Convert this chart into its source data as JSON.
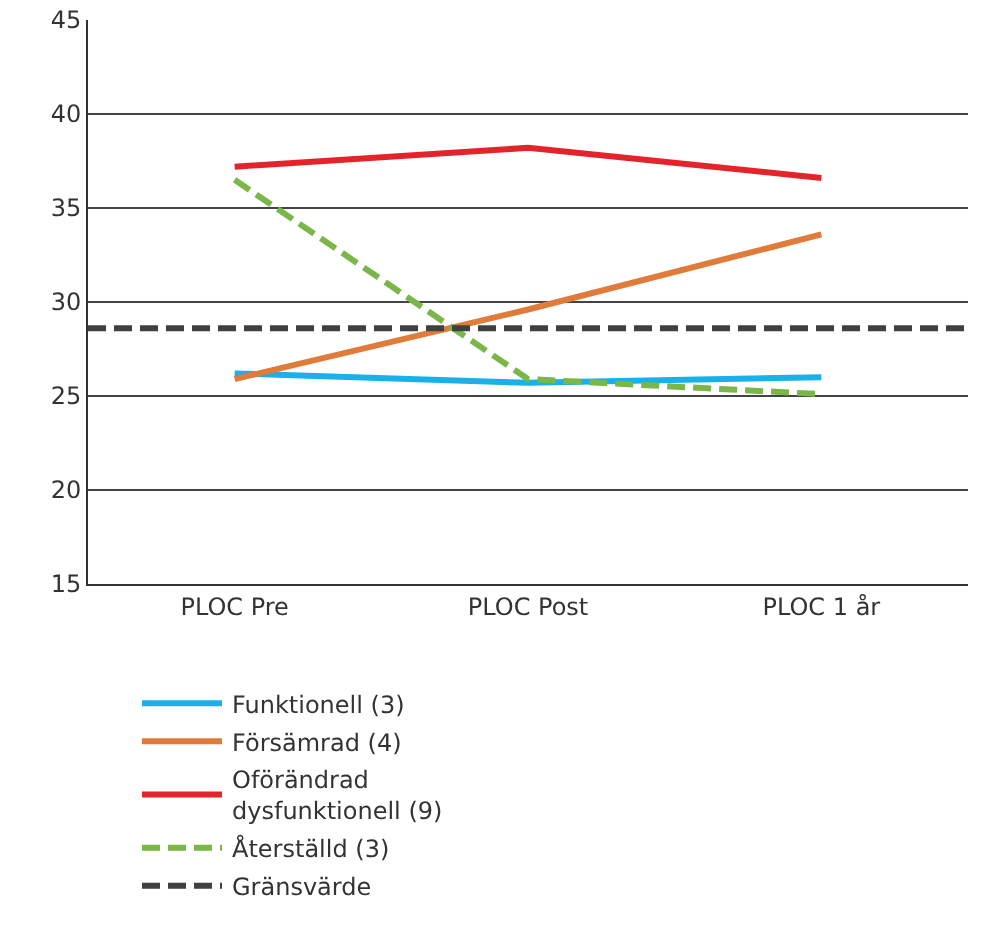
{
  "chart_data": {
    "type": "line",
    "categories": [
      "PLOC Pre",
      "PLOC Post",
      "PLOC 1 år"
    ],
    "series": [
      {
        "name": "Funktionell (3)",
        "color": "#1ab0e8",
        "values": [
          26.2,
          25.7,
          26.0
        ]
      },
      {
        "name": "Försämrad (4)",
        "color": "#e07b39",
        "values": [
          25.9,
          29.6,
          33.6
        ]
      },
      {
        "name": "Oförändrad dysfunktionell (9)",
        "color": "#e3242b",
        "values": [
          37.2,
          38.2,
          36.6
        ]
      },
      {
        "name": "Återställd (3)",
        "color": "#7ab648",
        "values": [
          36.5,
          25.9,
          25.1
        ],
        "line_style": "dashed"
      }
    ],
    "ref_lines": [
      {
        "axis": "y",
        "value": 28.6,
        "label": "Gränsvärde",
        "color": "#404040",
        "line_style": "dashed"
      }
    ],
    "ylim": [
      15,
      45
    ],
    "yticks": [
      15,
      20,
      25,
      30,
      35,
      40,
      45
    ],
    "grid": "y",
    "legend": "bottom",
    "marker": "none",
    "line_style": "solid"
  }
}
